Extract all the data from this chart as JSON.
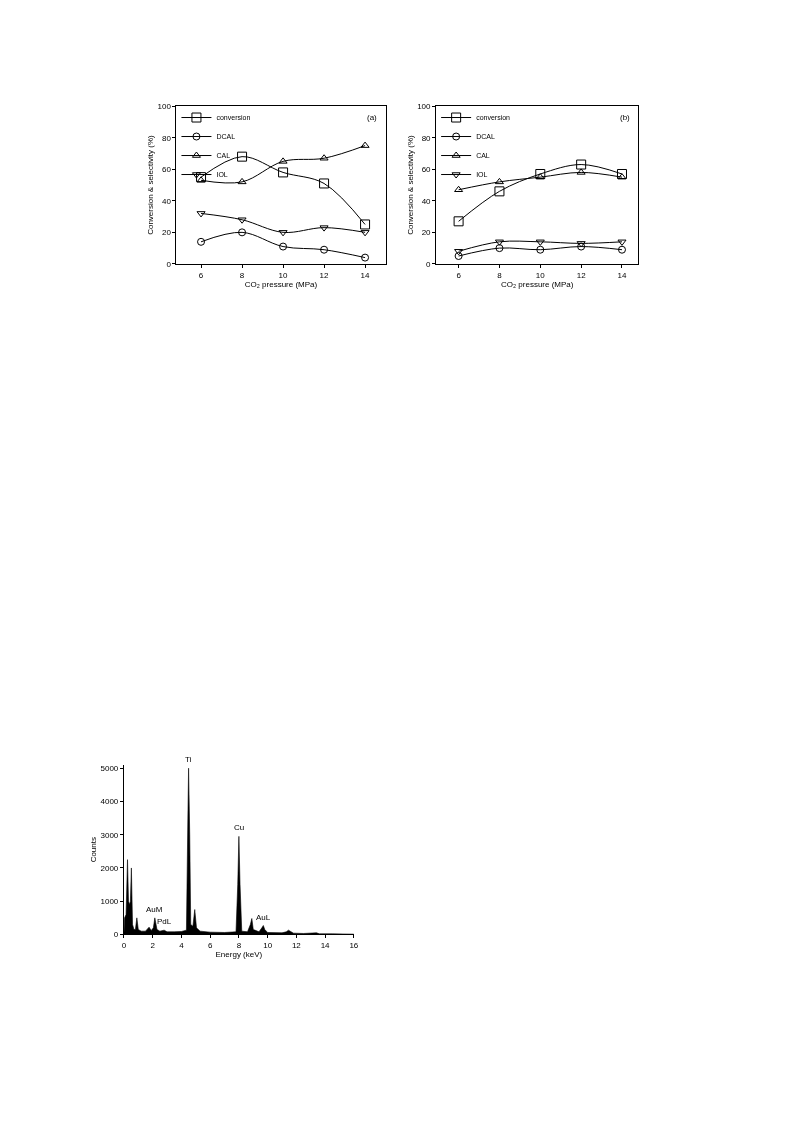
{
  "chart_data": [
    {
      "type": "line",
      "xlabel": "CO₂ pressure (MPa)",
      "ylabel": "Conversion & selectivity (%)",
      "annotations": [
        "(a)"
      ],
      "x": [
        6,
        8,
        10,
        12,
        14
      ],
      "xlim": [
        4.8,
        15.0
      ],
      "xticks": [
        6,
        8,
        10,
        12,
        14
      ],
      "ylim": [
        0,
        100
      ],
      "yticks": [
        0,
        20,
        40,
        60,
        80,
        100
      ],
      "legend": "top left",
      "series": [
        {
          "name": "conversion",
          "color": "#000000",
          "marker": "square",
          "values": [
            55,
            68,
            58,
            51,
            25
          ]
        },
        {
          "name": "DCAL",
          "color": "#000000",
          "marker": "circle",
          "values": [
            14,
            20,
            11,
            9,
            4
          ]
        },
        {
          "name": "CAL",
          "color": "#000000",
          "marker": "triangle",
          "values": [
            53,
            52,
            65,
            67,
            75
          ]
        },
        {
          "name": "IOL",
          "color": "#000000",
          "marker": "triangle-down",
          "values": [
            32,
            28,
            20,
            23,
            20
          ]
        }
      ]
    },
    {
      "type": "line",
      "xlabel": "CO₂ pressure (MPa)",
      "ylabel": "Conversion & selectivity (%)",
      "annotations": [
        "(b)"
      ],
      "x": [
        6,
        8,
        10,
        12,
        14
      ],
      "xlim": [
        4.9,
        14.8
      ],
      "xticks": [
        6,
        8,
        10,
        12,
        14
      ],
      "ylim": [
        0,
        100
      ],
      "yticks": [
        0,
        20,
        40,
        60,
        80,
        100
      ],
      "legend": "top left",
      "series": [
        {
          "name": "conversion",
          "color": "#000000",
          "marker": "square",
          "values": [
            27,
            46,
            57,
            63,
            57
          ]
        },
        {
          "name": "DCAL",
          "color": "#000000",
          "marker": "circle",
          "values": [
            5,
            10,
            9,
            11,
            9
          ]
        },
        {
          "name": "CAL",
          "color": "#000000",
          "marker": "triangle",
          "values": [
            47,
            52,
            55,
            58,
            55
          ]
        },
        {
          "name": "IOL",
          "color": "#000000",
          "marker": "triangle-down",
          "values": [
            8,
            14,
            14,
            13,
            14
          ]
        }
      ]
    },
    {
      "type": "area",
      "xlabel": "Energy (keV)",
      "ylabel": "Counts",
      "xlim": [
        0,
        16
      ],
      "xticks": [
        0,
        2,
        4,
        6,
        8,
        10,
        12,
        14,
        16
      ],
      "ylim": [
        0,
        5100
      ],
      "yticks": [
        0,
        1000,
        2000,
        3000,
        4000,
        5000
      ],
      "annotations": [
        {
          "text": "Ti",
          "x": 4.5,
          "y": 5000
        },
        {
          "text": "Cu",
          "x": 8.0,
          "y": 2950
        },
        {
          "text": "AuM",
          "x": 2.15,
          "y": 500
        },
        {
          "text": "PdL",
          "x": 2.8,
          "y": 130
        },
        {
          "text": "AuL",
          "x": 9.7,
          "y": 270
        }
      ],
      "x": [
        0,
        0.05,
        0.15,
        0.25,
        0.32,
        0.4,
        0.45,
        0.52,
        0.6,
        0.7,
        0.8,
        0.9,
        1.0,
        1.2,
        1.5,
        1.75,
        1.9,
        2.05,
        2.15,
        2.3,
        2.5,
        2.8,
        3.0,
        3.5,
        4.0,
        4.35,
        4.45,
        4.5,
        4.58,
        4.65,
        4.8,
        4.93,
        5.05,
        5.3,
        6.0,
        7.0,
        7.8,
        7.92,
        8.0,
        8.08,
        8.2,
        8.6,
        8.8,
        8.9,
        9.0,
        9.4,
        9.6,
        9.7,
        9.8,
        10.0,
        11.0,
        11.3,
        11.45,
        11.6,
        11.8,
        12.5,
        13.4,
        13.6,
        14.5,
        16
      ],
      "series": [
        {
          "color": "#000000",
          "values": [
            0,
            500,
            600,
            2250,
            1000,
            900,
            1000,
            2000,
            300,
            150,
            150,
            500,
            150,
            100,
            100,
            220,
            120,
            200,
            500,
            150,
            100,
            130,
            80,
            80,
            90,
            130,
            3500,
            5000,
            3000,
            300,
            250,
            750,
            200,
            100,
            70,
            60,
            80,
            1500,
            2950,
            1500,
            100,
            80,
            300,
            480,
            150,
            80,
            200,
            270,
            150,
            60,
            50,
            80,
            130,
            90,
            40,
            30,
            50,
            20,
            20,
            10
          ]
        }
      ]
    }
  ]
}
